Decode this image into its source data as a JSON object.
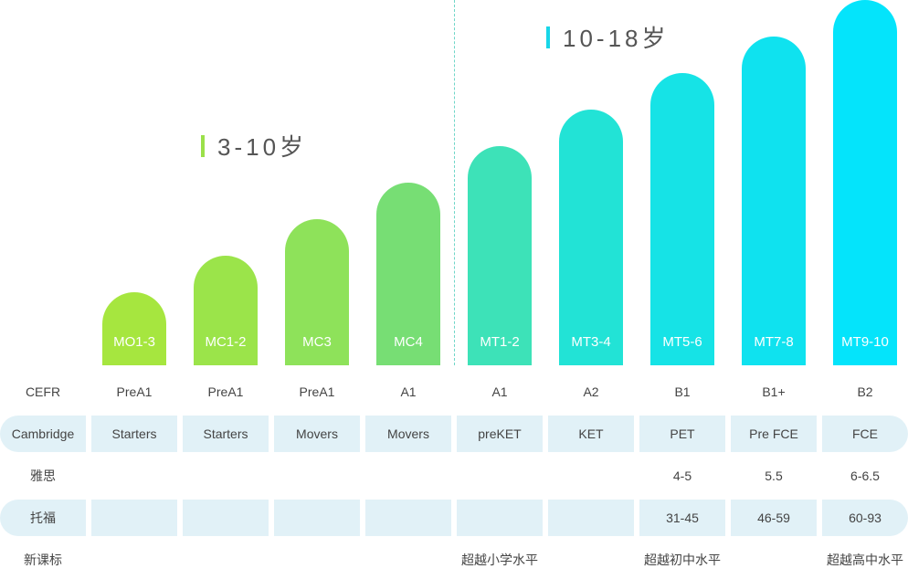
{
  "age_groups": {
    "young": "3-10岁",
    "teen": "10-18岁"
  },
  "levels": [
    {
      "label": "MO1-3",
      "tier": 1,
      "color": "#a6e63f"
    },
    {
      "label": "MC1-2",
      "tier": 2,
      "color": "#9be44a"
    },
    {
      "label": "MC3",
      "tier": 3,
      "color": "#8ee25a"
    },
    {
      "label": "MC4",
      "tier": 4,
      "color": "#77de74"
    },
    {
      "label": "MT1-2",
      "tier": 5,
      "color": "#3de2b8"
    },
    {
      "label": "MT3-4",
      "tier": 6,
      "color": "#22e3d6"
    },
    {
      "label": "MT5-6",
      "tier": 7,
      "color": "#16e3e6"
    },
    {
      "label": "MT7-8",
      "tier": 8,
      "color": "#0fe2ef"
    },
    {
      "label": "MT9-10",
      "tier": 9,
      "color": "#04e4fb"
    }
  ],
  "rows": [
    {
      "name": "CEFR",
      "shaded": false,
      "values": [
        "PreA1",
        "PreA1",
        "PreA1",
        "A1",
        "A1",
        "A2",
        "B1",
        "B1+",
        "B2"
      ]
    },
    {
      "name": "Cambridge",
      "shaded": true,
      "values": [
        "Starters",
        "Starters",
        "Movers",
        "Movers",
        "preKET",
        "KET",
        "PET",
        "Pre FCE",
        "FCE"
      ]
    },
    {
      "name": "雅思",
      "shaded": false,
      "values": [
        "",
        "",
        "",
        "",
        "",
        "",
        "4-5",
        "5.5",
        "6-6.5"
      ]
    },
    {
      "name": "托福",
      "shaded": true,
      "values": [
        "",
        "",
        "",
        "",
        "",
        "",
        "31-45",
        "46-59",
        "60-93"
      ]
    },
    {
      "name": "新课标",
      "shaded": false,
      "values": [
        "",
        "",
        "",
        "",
        "超越小学水平",
        "",
        "超越初中水平",
        "",
        "超越高中水平"
      ]
    }
  ]
}
